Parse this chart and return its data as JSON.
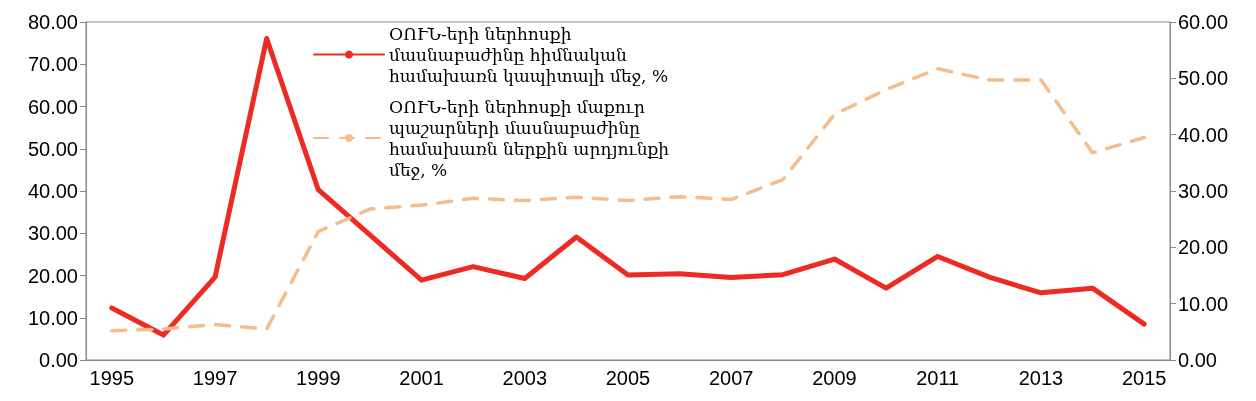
{
  "chart_data": {
    "type": "line",
    "categories": [
      "1995",
      null,
      "1997",
      null,
      "1999",
      null,
      "2001",
      null,
      "2003",
      null,
      "2005",
      null,
      "2007",
      null,
      "2009",
      null,
      "2011",
      null,
      "2013",
      null,
      "2015"
    ],
    "series": [
      {
        "name": "ՕՈՒՆ-երի ներհոսքի մասնաբաժինը հիմնական համախառն կապիտալի մեջ, %",
        "color": "#ee2a24",
        "line_style": "solid",
        "values": [
          12.3,
          5.9,
          19.6,
          76.1,
          40.3,
          29.6,
          18.9,
          22.1,
          19.3,
          29.1,
          20.1,
          20.4,
          19.5,
          20.2,
          23.9,
          17.0,
          24.5,
          19.6,
          15.9,
          17.0,
          8.5
        ]
      },
      {
        "name": "ՕՈՒՆ-երի ներհոսքի մաքուր պաշարների մասնաբաժինը համախառն ներքին արդյունքի մեջ, %",
        "color": "#f5bc8c",
        "line_style": "dashed",
        "axis": "y2",
        "values": [
          5.2,
          5.5,
          6.3,
          5.5,
          22.8,
          26.8,
          27.5,
          28.7,
          28.3,
          28.9,
          28.3,
          29.0,
          28.5,
          32.0,
          43.6,
          48.0,
          51.7,
          49.7,
          49.7,
          36.8,
          39.5
        ]
      }
    ],
    "ylim": [
      0,
      80
    ],
    "yticks": [
      {
        "value": 0,
        "label": "0.00"
      },
      {
        "value": 10,
        "label": "10.00"
      },
      {
        "value": 20,
        "label": "20.00"
      },
      {
        "value": 30,
        "label": "30.00"
      },
      {
        "value": 40,
        "label": "40.00"
      },
      {
        "value": 50,
        "label": "50.00"
      },
      {
        "value": 60,
        "label": "60.00"
      },
      {
        "value": 70,
        "label": "70.00"
      },
      {
        "value": 80,
        "label": "80.00"
      }
    ],
    "y2lim": [
      0,
      60
    ],
    "y2ticks": [
      {
        "value": 0,
        "label": "0.00"
      },
      {
        "value": 10,
        "label": "10.00"
      },
      {
        "value": 20,
        "label": "20.00"
      },
      {
        "value": 30,
        "label": "30.00"
      },
      {
        "value": 40,
        "label": "40.00"
      },
      {
        "value": 50,
        "label": "50.00"
      },
      {
        "value": 60,
        "label": "60.00"
      }
    ],
    "grid": false,
    "legend": "top",
    "marker": "none"
  }
}
